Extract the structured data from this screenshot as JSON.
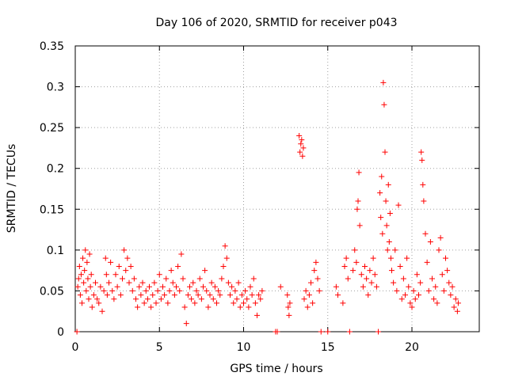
{
  "chart_data": {
    "type": "scatter",
    "title": "Day 106 of 2020, SRMTID for receiver p043",
    "xlabel": "GPS time / hours",
    "ylabel": "SRMTID / TECUs",
    "xlim": [
      0,
      24
    ],
    "ylim": [
      0,
      0.35
    ],
    "grid": true,
    "legend": "none",
    "marker": "+",
    "color": "#ff0000",
    "x_ticks": [
      {
        "value": 0,
        "label": "0"
      },
      {
        "value": 5,
        "label": "5"
      },
      {
        "value": 10,
        "label": "10"
      },
      {
        "value": 15,
        "label": "15"
      },
      {
        "value": 20,
        "label": "20"
      }
    ],
    "y_ticks": [
      {
        "value": 0,
        "label": "0"
      },
      {
        "value": 0.05,
        "label": "0.05"
      },
      {
        "value": 0.1,
        "label": "0.1"
      },
      {
        "value": 0.15,
        "label": "0.15"
      },
      {
        "value": 0.2,
        "label": "0.2"
      },
      {
        "value": 0.25,
        "label": "0.25"
      },
      {
        "value": 0.3,
        "label": "0.3"
      },
      {
        "value": 0.35,
        "label": "0.35"
      }
    ],
    "series": [
      {
        "name": "SRMTID",
        "points": [
          [
            0.1,
            0.0
          ],
          [
            0.15,
            0.055
          ],
          [
            0.2,
            0.065
          ],
          [
            0.25,
            0.08
          ],
          [
            0.3,
            0.045
          ],
          [
            0.35,
            0.07
          ],
          [
            0.4,
            0.035
          ],
          [
            0.45,
            0.09
          ],
          [
            0.5,
            0.06
          ],
          [
            0.55,
            0.075
          ],
          [
            0.6,
            0.1
          ],
          [
            0.65,
            0.05
          ],
          [
            0.7,
            0.085
          ],
          [
            0.75,
            0.065
          ],
          [
            0.8,
            0.04
          ],
          [
            0.85,
            0.095
          ],
          [
            0.9,
            0.055
          ],
          [
            0.95,
            0.07
          ],
          [
            1.0,
            0.03
          ],
          [
            1.1,
            0.045
          ],
          [
            1.2,
            0.06
          ],
          [
            1.3,
            0.04
          ],
          [
            1.4,
            0.035
          ],
          [
            1.5,
            0.055
          ],
          [
            1.6,
            0.025
          ],
          [
            1.7,
            0.05
          ],
          [
            1.8,
            0.09
          ],
          [
            1.85,
            0.07
          ],
          [
            1.9,
            0.045
          ],
          [
            2.0,
            0.06
          ],
          [
            2.1,
            0.085
          ],
          [
            2.2,
            0.05
          ],
          [
            2.3,
            0.04
          ],
          [
            2.4,
            0.07
          ],
          [
            2.5,
            0.055
          ],
          [
            2.6,
            0.08
          ],
          [
            2.7,
            0.045
          ],
          [
            2.8,
            0.065
          ],
          [
            2.9,
            0.1
          ],
          [
            3.0,
            0.075
          ],
          [
            3.1,
            0.09
          ],
          [
            3.2,
            0.06
          ],
          [
            3.3,
            0.08
          ],
          [
            3.4,
            0.05
          ],
          [
            3.5,
            0.065
          ],
          [
            3.6,
            0.04
          ],
          [
            3.7,
            0.03
          ],
          [
            3.8,
            0.055
          ],
          [
            3.9,
            0.045
          ],
          [
            4.0,
            0.06
          ],
          [
            4.1,
            0.035
          ],
          [
            4.2,
            0.05
          ],
          [
            4.3,
            0.04
          ],
          [
            4.4,
            0.055
          ],
          [
            4.5,
            0.03
          ],
          [
            4.6,
            0.045
          ],
          [
            4.7,
            0.06
          ],
          [
            4.8,
            0.035
          ],
          [
            4.9,
            0.05
          ],
          [
            5.0,
            0.07
          ],
          [
            5.1,
            0.04
          ],
          [
            5.2,
            0.055
          ],
          [
            5.3,
            0.045
          ],
          [
            5.4,
            0.065
          ],
          [
            5.5,
            0.035
          ],
          [
            5.6,
            0.05
          ],
          [
            5.7,
            0.075
          ],
          [
            5.8,
            0.06
          ],
          [
            5.9,
            0.045
          ],
          [
            6.0,
            0.055
          ],
          [
            6.1,
            0.08
          ],
          [
            6.2,
            0.05
          ],
          [
            6.3,
            0.095
          ],
          [
            6.4,
            0.065
          ],
          [
            6.5,
            0.03
          ],
          [
            6.6,
            0.01
          ],
          [
            6.7,
            0.045
          ],
          [
            6.8,
            0.055
          ],
          [
            6.9,
            0.04
          ],
          [
            7.0,
            0.06
          ],
          [
            7.1,
            0.035
          ],
          [
            7.2,
            0.05
          ],
          [
            7.3,
            0.045
          ],
          [
            7.4,
            0.065
          ],
          [
            7.5,
            0.04
          ],
          [
            7.6,
            0.055
          ],
          [
            7.7,
            0.075
          ],
          [
            7.8,
            0.05
          ],
          [
            7.9,
            0.03
          ],
          [
            8.0,
            0.045
          ],
          [
            8.1,
            0.06
          ],
          [
            8.2,
            0.04
          ],
          [
            8.3,
            0.055
          ],
          [
            8.4,
            0.035
          ],
          [
            8.5,
            0.05
          ],
          [
            8.6,
            0.045
          ],
          [
            8.7,
            0.065
          ],
          [
            8.8,
            0.08
          ],
          [
            8.9,
            0.105
          ],
          [
            9.0,
            0.09
          ],
          [
            9.1,
            0.06
          ],
          [
            9.2,
            0.045
          ],
          [
            9.3,
            0.055
          ],
          [
            9.4,
            0.035
          ],
          [
            9.5,
            0.05
          ],
          [
            9.6,
            0.04
          ],
          [
            9.7,
            0.06
          ],
          [
            9.8,
            0.03
          ],
          [
            9.9,
            0.045
          ],
          [
            10.0,
            0.035
          ],
          [
            10.1,
            0.05
          ],
          [
            10.2,
            0.04
          ],
          [
            10.3,
            0.03
          ],
          [
            10.4,
            0.055
          ],
          [
            10.5,
            0.045
          ],
          [
            10.6,
            0.065
          ],
          [
            10.7,
            0.035
          ],
          [
            10.8,
            0.02
          ],
          [
            10.9,
            0.045
          ],
          [
            11.0,
            0.04
          ],
          [
            11.1,
            0.05
          ],
          [
            11.9,
            0.0
          ],
          [
            12.0,
            0.0
          ],
          [
            12.2,
            0.055
          ],
          [
            12.6,
            0.045
          ],
          [
            12.65,
            0.03
          ],
          [
            12.7,
            0.02
          ],
          [
            12.75,
            0.035
          ],
          [
            13.3,
            0.24
          ],
          [
            13.35,
            0.22
          ],
          [
            13.4,
            0.23
          ],
          [
            13.45,
            0.235
          ],
          [
            13.5,
            0.215
          ],
          [
            13.55,
            0.225
          ],
          [
            13.6,
            0.04
          ],
          [
            13.7,
            0.05
          ],
          [
            13.8,
            0.03
          ],
          [
            13.9,
            0.045
          ],
          [
            14.0,
            0.06
          ],
          [
            14.1,
            0.035
          ],
          [
            14.2,
            0.075
          ],
          [
            14.3,
            0.085
          ],
          [
            14.4,
            0.065
          ],
          [
            14.5,
            0.05
          ],
          [
            14.6,
            0.0
          ],
          [
            15.0,
            0.0
          ],
          [
            15.5,
            0.055
          ],
          [
            15.6,
            0.045
          ],
          [
            15.9,
            0.035
          ],
          [
            16.0,
            0.08
          ],
          [
            16.1,
            0.09
          ],
          [
            16.2,
            0.065
          ],
          [
            16.3,
            0.0
          ],
          [
            16.5,
            0.075
          ],
          [
            16.6,
            0.1
          ],
          [
            16.7,
            0.085
          ],
          [
            16.75,
            0.15
          ],
          [
            16.8,
            0.16
          ],
          [
            16.85,
            0.195
          ],
          [
            16.9,
            0.13
          ],
          [
            17.0,
            0.07
          ],
          [
            17.1,
            0.055
          ],
          [
            17.2,
            0.08
          ],
          [
            17.3,
            0.065
          ],
          [
            17.4,
            0.045
          ],
          [
            17.5,
            0.075
          ],
          [
            17.6,
            0.06
          ],
          [
            17.7,
            0.09
          ],
          [
            17.8,
            0.07
          ],
          [
            17.9,
            0.055
          ],
          [
            18.0,
            0.0
          ],
          [
            18.1,
            0.17
          ],
          [
            18.15,
            0.14
          ],
          [
            18.2,
            0.19
          ],
          [
            18.25,
            0.12
          ],
          [
            18.3,
            0.305
          ],
          [
            18.35,
            0.278
          ],
          [
            18.4,
            0.22
          ],
          [
            18.45,
            0.16
          ],
          [
            18.5,
            0.13
          ],
          [
            18.55,
            0.1
          ],
          [
            18.6,
            0.18
          ],
          [
            18.65,
            0.11
          ],
          [
            18.7,
            0.145
          ],
          [
            18.75,
            0.09
          ],
          [
            18.8,
            0.075
          ],
          [
            18.9,
            0.06
          ],
          [
            19.0,
            0.1
          ],
          [
            19.1,
            0.05
          ],
          [
            19.2,
            0.155
          ],
          [
            19.3,
            0.08
          ],
          [
            19.4,
            0.04
          ],
          [
            19.5,
            0.065
          ],
          [
            19.6,
            0.045
          ],
          [
            19.7,
            0.09
          ],
          [
            19.8,
            0.055
          ],
          [
            19.9,
            0.035
          ],
          [
            20.0,
            0.03
          ],
          [
            20.1,
            0.05
          ],
          [
            20.2,
            0.04
          ],
          [
            20.3,
            0.07
          ],
          [
            20.4,
            0.045
          ],
          [
            20.5,
            0.06
          ],
          [
            20.55,
            0.22
          ],
          [
            20.6,
            0.21
          ],
          [
            20.65,
            0.18
          ],
          [
            20.7,
            0.16
          ],
          [
            20.8,
            0.12
          ],
          [
            20.9,
            0.085
          ],
          [
            21.0,
            0.05
          ],
          [
            21.1,
            0.11
          ],
          [
            21.2,
            0.065
          ],
          [
            21.3,
            0.04
          ],
          [
            21.4,
            0.055
          ],
          [
            21.5,
            0.035
          ],
          [
            21.6,
            0.1
          ],
          [
            21.7,
            0.115
          ],
          [
            21.8,
            0.07
          ],
          [
            21.9,
            0.05
          ],
          [
            22.0,
            0.09
          ],
          [
            22.1,
            0.075
          ],
          [
            22.2,
            0.06
          ],
          [
            22.3,
            0.045
          ],
          [
            22.4,
            0.055
          ],
          [
            22.5,
            0.03
          ],
          [
            22.6,
            0.04
          ],
          [
            22.7,
            0.025
          ],
          [
            22.75,
            0.035
          ]
        ]
      }
    ]
  }
}
